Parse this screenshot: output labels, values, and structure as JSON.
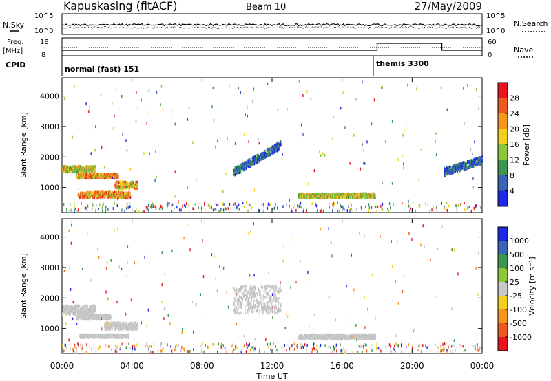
{
  "header": {
    "station": "Kapuskasing (fitACF)",
    "beam": "Beam 10",
    "date": "27/May/2009"
  },
  "top_panel": {
    "nsky_label": "N.Sky",
    "nsearch_label": "N.Search",
    "left_ticks": [
      "10^5",
      "10^0"
    ],
    "right_ticks": [
      "10^5",
      "10^0"
    ]
  },
  "freq_panel": {
    "freq_label": "Freq.",
    "freq_unit": "[MHz]",
    "nave_label": "Nave",
    "cpid_label": "CPID",
    "left_ticks": [
      "18",
      "8"
    ],
    "right_ticks": [
      "60",
      "0"
    ],
    "modes": [
      {
        "name": "normal (fast) 151",
        "start_hour": 0
      },
      {
        "name": "themis 3300",
        "start_hour": 18
      }
    ]
  },
  "chart_data": [
    {
      "type": "heatmap",
      "title": "Power",
      "ylabel": "Slant Range [km]",
      "xlabel": "",
      "xlim": [
        0,
        24
      ],
      "ylim": [
        180,
        4600
      ],
      "yticks": [
        "1000",
        "2000",
        "3000",
        "4000"
      ],
      "colorbar": {
        "label": "Power [dB]",
        "ticks": [
          "28",
          "24",
          "20",
          "16",
          "12",
          "8",
          "4"
        ],
        "colors": [
          "#e8141e",
          "#f05a1e",
          "#f5961e",
          "#f0d21e",
          "#8cc83c",
          "#3c9650",
          "#3c64b4",
          "#1e28e6"
        ]
      },
      "echo_regions": [
        {
          "t_start": 0.0,
          "t_end": 1.9,
          "range_start": 1500,
          "range_end": 1700,
          "level": "medium"
        },
        {
          "t_start": 0.8,
          "t_end": 3.2,
          "range_start": 1300,
          "range_end": 1450,
          "level": "high"
        },
        {
          "t_start": 0.9,
          "t_end": 3.9,
          "range_start": 650,
          "range_end": 850,
          "level": "high"
        },
        {
          "t_start": 3.0,
          "t_end": 4.3,
          "range_start": 950,
          "range_end": 1200,
          "level": "high"
        },
        {
          "t_start": 9.8,
          "t_end": 12.5,
          "range_start": 1500,
          "range_end": 2400,
          "level": "low"
        },
        {
          "t_start": 13.5,
          "t_end": 17.9,
          "range_start": 650,
          "range_end": 800,
          "level": "medium"
        },
        {
          "t_start": 21.8,
          "t_end": 24.0,
          "range_start": 1500,
          "range_end": 1900,
          "level": "low"
        }
      ]
    },
    {
      "type": "heatmap",
      "title": "Velocity",
      "ylabel": "Slant Range [km]",
      "xlabel": "Time UT",
      "xlim": [
        0,
        24
      ],
      "ylim": [
        180,
        4600
      ],
      "yticks": [
        "1000",
        "2000",
        "3000",
        "4000"
      ],
      "xticks": [
        "00:00",
        "04:00",
        "08:00",
        "12:00",
        "16:00",
        "20:00",
        "00:00"
      ],
      "colorbar": {
        "label": "Velocity [m s⁻¹]",
        "ticks": [
          "1000",
          "500",
          "100",
          "25",
          "-25",
          "-100",
          "-500",
          "-1000"
        ],
        "colors": [
          "#1e28e6",
          "#3c64b4",
          "#3c9650",
          "#8cc83c",
          "#c8c8c8",
          "#f0d21e",
          "#f5961e",
          "#f05a1e",
          "#e8141e"
        ]
      },
      "echo_regions": [
        {
          "t_start": 0.0,
          "t_end": 1.9,
          "range_start": 1450,
          "range_end": 1750,
          "level": "ground"
        },
        {
          "t_start": 0.8,
          "t_end": 2.8,
          "range_start": 1300,
          "range_end": 1450,
          "level": "ground"
        },
        {
          "t_start": 1.0,
          "t_end": 3.8,
          "range_start": 700,
          "range_end": 800,
          "level": "ground"
        },
        {
          "t_start": 2.4,
          "t_end": 4.3,
          "range_start": 950,
          "range_end": 1200,
          "level": "ground"
        },
        {
          "t_start": 9.8,
          "t_end": 12.5,
          "range_start": 1500,
          "range_end": 2400,
          "level": "ground"
        },
        {
          "t_start": 13.5,
          "t_end": 17.9,
          "range_start": 650,
          "range_end": 800,
          "level": "ground"
        }
      ]
    }
  ]
}
